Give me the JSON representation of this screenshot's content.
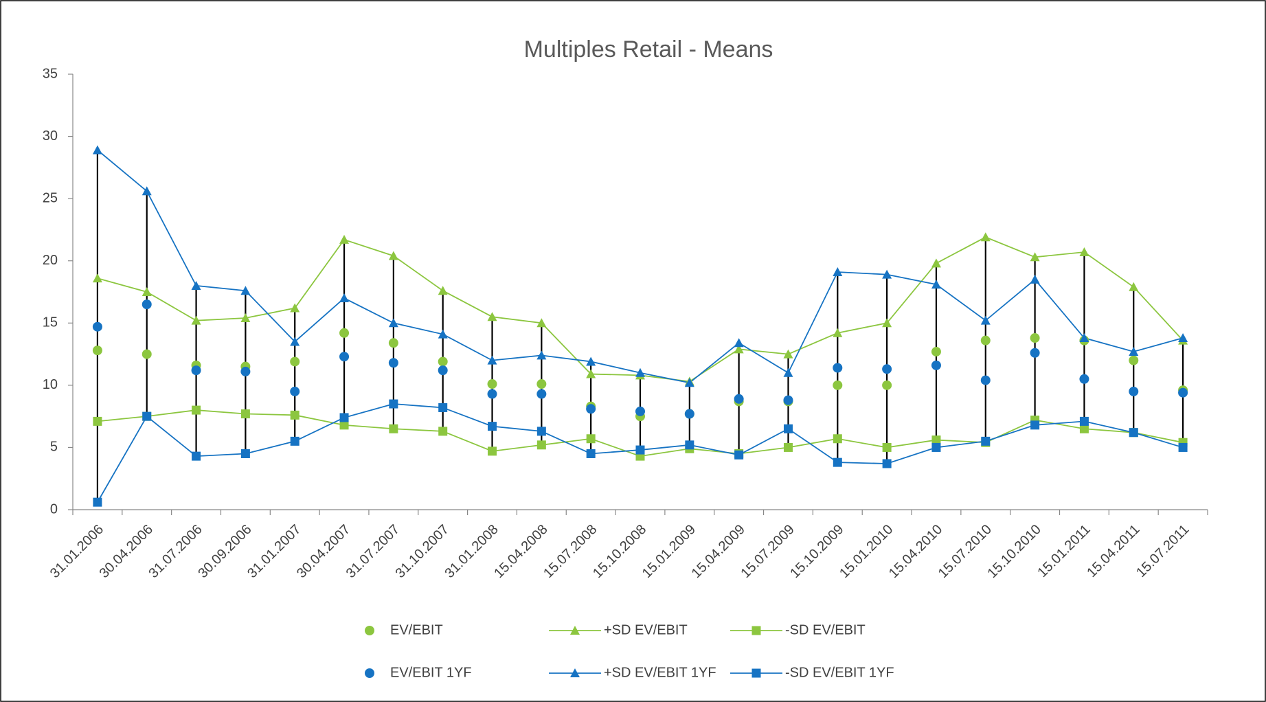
{
  "chart_data": {
    "type": "line",
    "title": "Multiples Retail - Means",
    "categories": [
      "31.01.2006",
      "30.04.2006",
      "31.07.2006",
      "30.09.2006",
      "31.01.2007",
      "30.04.2007",
      "31.07.2007",
      "31.10.2007",
      "31.01.2008",
      "15.04.2008",
      "15.07.2008",
      "15.10.2008",
      "15.01.2009",
      "15.04.2009",
      "15.07.2009",
      "15.10.2009",
      "15.01.2010",
      "15.04.2010",
      "15.07.2010",
      "15.10.2010",
      "15.01.2011",
      "15.04.2011",
      "15.07.2011"
    ],
    "ylim": [
      0,
      35
    ],
    "yticks": [
      0,
      5,
      10,
      15,
      20,
      25,
      30,
      35
    ],
    "high_low_lines": true,
    "series": [
      {
        "name": "EV/EBIT",
        "color": "#8cc63f",
        "marker": "circle",
        "line": false,
        "values": [
          12.8,
          12.5,
          11.6,
          11.5,
          11.9,
          14.2,
          13.4,
          11.9,
          10.1,
          10.1,
          8.3,
          7.5,
          7.7,
          8.7,
          8.7,
          10.0,
          10.0,
          12.7,
          13.6,
          13.8,
          13.6,
          12.0,
          9.6
        ]
      },
      {
        "name": "+SD EV/EBIT",
        "color": "#8cc63f",
        "marker": "triangle",
        "line": true,
        "values": [
          18.6,
          17.5,
          15.2,
          15.4,
          16.2,
          21.7,
          20.4,
          17.6,
          15.5,
          15.0,
          10.9,
          10.8,
          10.3,
          12.9,
          12.5,
          14.2,
          15.0,
          19.8,
          21.9,
          20.3,
          20.7,
          17.9,
          13.6
        ]
      },
      {
        "name": "-SD EV/EBIT",
        "color": "#8cc63f",
        "marker": "square",
        "line": true,
        "values": [
          7.1,
          7.5,
          8.0,
          7.7,
          7.6,
          6.8,
          6.5,
          6.3,
          4.7,
          5.2,
          5.7,
          4.3,
          4.9,
          4.5,
          5.0,
          5.7,
          5.0,
          5.6,
          5.4,
          7.2,
          6.5,
          6.2,
          5.4
        ]
      },
      {
        "name": "EV/EBIT 1YF",
        "color": "#1673c3",
        "marker": "circle",
        "line": false,
        "values": [
          14.7,
          16.5,
          11.2,
          11.1,
          9.5,
          12.3,
          11.8,
          11.2,
          9.3,
          9.3,
          8.1,
          7.9,
          7.7,
          8.9,
          8.8,
          11.4,
          11.3,
          11.6,
          10.4,
          12.6,
          10.5,
          9.5,
          9.4
        ]
      },
      {
        "name": "+SD EV/EBIT 1YF",
        "color": "#1673c3",
        "marker": "triangle",
        "line": true,
        "values": [
          28.9,
          25.6,
          18.0,
          17.6,
          13.5,
          17.0,
          15.0,
          14.1,
          12.0,
          12.4,
          11.9,
          11.0,
          10.2,
          13.4,
          11.0,
          19.1,
          18.9,
          18.1,
          15.2,
          18.5,
          13.8,
          12.7,
          13.8
        ]
      },
      {
        "name": "-SD EV/EBIT 1YF",
        "color": "#1673c3",
        "marker": "square",
        "line": true,
        "values": [
          0.6,
          7.5,
          4.3,
          4.5,
          5.5,
          7.4,
          8.5,
          8.2,
          6.7,
          6.3,
          4.5,
          4.8,
          5.2,
          4.4,
          6.5,
          3.8,
          3.7,
          5.0,
          5.5,
          6.8,
          7.1,
          6.2,
          5.0
        ]
      }
    ]
  }
}
